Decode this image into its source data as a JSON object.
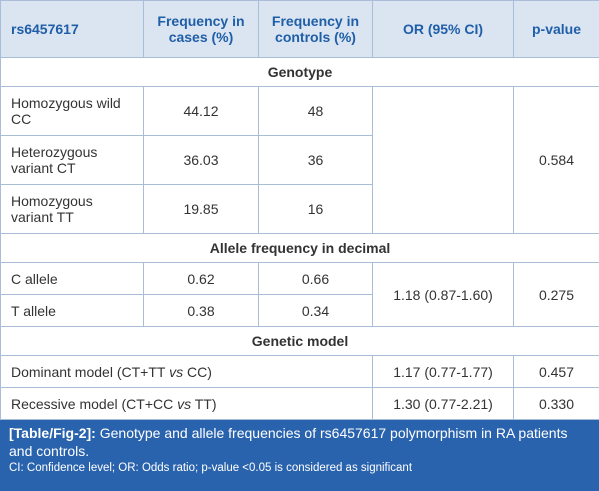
{
  "table": {
    "header": [
      "rs6457617",
      "Frequency in cases (%)",
      "Frequency in controls (%)",
      "OR (95% CI)",
      "p-value"
    ],
    "sections": [
      {
        "title": "Genotype",
        "rows": [
          [
            "Homozygous wild CC",
            "44.12",
            "48"
          ],
          [
            "Heterozygous variant CT",
            "36.03",
            "36"
          ],
          [
            "Homozygous variant TT",
            "19.85",
            "16"
          ]
        ],
        "p": "0.584"
      },
      {
        "title": "Allele frequency in decimal",
        "rows": [
          [
            "C allele",
            "0.62",
            "0.66"
          ],
          [
            "T allele",
            "0.38",
            "0.34"
          ]
        ],
        "or": "1.18 (0.87-1.60)",
        "p": "0.275"
      },
      {
        "title": "Genetic model",
        "rows": [
          {
            "label": [
              "Dominant model (CT+TT ",
              "vs",
              " CC)"
            ],
            "or": "1.17 (0.77-1.77)",
            "p": "0.457"
          },
          {
            "label": [
              "Recessive model (CT+CC ",
              "vs",
              " TT)"
            ],
            "or": "1.30 (0.77-2.21)",
            "p": "0.330"
          }
        ]
      }
    ]
  },
  "caption": {
    "label": "[Table/Fig-2]:",
    "text": " Genotype and allele frequencies of rs6457617 polymorphism in RA patients and controls.",
    "note": "CI: Confidence level; OR: Odds ratio; p-value <0.05 is considered as significant"
  }
}
